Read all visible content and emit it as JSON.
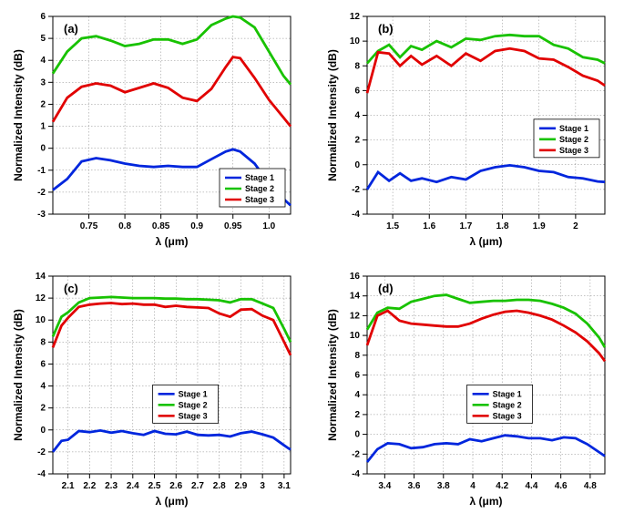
{
  "colors": {
    "stage1": "#0026dd",
    "stage2": "#18c200",
    "stage3": "#e10000",
    "grid": "#888888",
    "background": "#ffffff"
  },
  "legend_labels": [
    "Stage 1",
    "Stage 2",
    "Stage 3"
  ],
  "xlabel": "λ (μm)",
  "ylabel": "Normalized Intensity (dB)",
  "line_width": 2.8,
  "panels": {
    "a": {
      "letter": "(a)",
      "xlim": [
        0.7,
        1.03
      ],
      "ylim": [
        -3,
        6
      ],
      "xticks": [
        0.75,
        0.85,
        0.95
      ],
      "xticks_minor": [
        0.8,
        0.9,
        1.0
      ],
      "yticks": [
        -3,
        -2,
        -1,
        0,
        1,
        2,
        3,
        4,
        5,
        6
      ],
      "legend_pos": "bottom-right",
      "series": {
        "stage1": [
          [
            0.7,
            -1.9
          ],
          [
            0.72,
            -1.4
          ],
          [
            0.74,
            -0.6
          ],
          [
            0.76,
            -0.45
          ],
          [
            0.78,
            -0.55
          ],
          [
            0.8,
            -0.7
          ],
          [
            0.82,
            -0.8
          ],
          [
            0.84,
            -0.85
          ],
          [
            0.86,
            -0.8
          ],
          [
            0.88,
            -0.85
          ],
          [
            0.9,
            -0.85
          ],
          [
            0.92,
            -0.5
          ],
          [
            0.94,
            -0.15
          ],
          [
            0.95,
            -0.05
          ],
          [
            0.96,
            -0.15
          ],
          [
            0.98,
            -0.7
          ],
          [
            1.0,
            -1.6
          ],
          [
            1.02,
            -2.3
          ],
          [
            1.03,
            -2.6
          ]
        ],
        "stage2": [
          [
            0.7,
            3.4
          ],
          [
            0.72,
            4.4
          ],
          [
            0.74,
            5.0
          ],
          [
            0.76,
            5.1
          ],
          [
            0.78,
            4.9
          ],
          [
            0.8,
            4.65
          ],
          [
            0.82,
            4.75
          ],
          [
            0.84,
            4.95
          ],
          [
            0.86,
            4.95
          ],
          [
            0.88,
            4.75
          ],
          [
            0.9,
            4.95
          ],
          [
            0.92,
            5.6
          ],
          [
            0.94,
            5.9
          ],
          [
            0.95,
            6.0
          ],
          [
            0.96,
            5.95
          ],
          [
            0.98,
            5.5
          ],
          [
            1.0,
            4.4
          ],
          [
            1.02,
            3.3
          ],
          [
            1.03,
            2.9
          ]
        ],
        "stage3": [
          [
            0.7,
            1.2
          ],
          [
            0.72,
            2.3
          ],
          [
            0.74,
            2.8
          ],
          [
            0.76,
            2.95
          ],
          [
            0.78,
            2.85
          ],
          [
            0.8,
            2.55
          ],
          [
            0.82,
            2.75
          ],
          [
            0.84,
            2.95
          ],
          [
            0.86,
            2.75
          ],
          [
            0.88,
            2.3
          ],
          [
            0.9,
            2.15
          ],
          [
            0.92,
            2.7
          ],
          [
            0.94,
            3.7
          ],
          [
            0.95,
            4.15
          ],
          [
            0.96,
            4.1
          ],
          [
            0.98,
            3.2
          ],
          [
            1.0,
            2.2
          ],
          [
            1.02,
            1.4
          ],
          [
            1.03,
            1.0
          ]
        ]
      }
    },
    "b": {
      "letter": "(b)",
      "xlim": [
        1.43,
        2.08
      ],
      "ylim": [
        -4,
        12
      ],
      "xticks": [
        1.5,
        1.6,
        1.7,
        1.8,
        1.9,
        2.0
      ],
      "xticks_minor": [],
      "yticks": [
        -4,
        -2,
        0,
        2,
        4,
        6,
        8,
        10,
        12
      ],
      "legend_pos": "middle-right",
      "series": {
        "stage1": [
          [
            1.43,
            -2.0
          ],
          [
            1.46,
            -0.6
          ],
          [
            1.49,
            -1.3
          ],
          [
            1.52,
            -0.7
          ],
          [
            1.55,
            -1.3
          ],
          [
            1.58,
            -1.1
          ],
          [
            1.62,
            -1.4
          ],
          [
            1.66,
            -1.0
          ],
          [
            1.7,
            -1.2
          ],
          [
            1.74,
            -0.5
          ],
          [
            1.78,
            -0.2
          ],
          [
            1.82,
            -0.05
          ],
          [
            1.86,
            -0.2
          ],
          [
            1.9,
            -0.5
          ],
          [
            1.94,
            -0.6
          ],
          [
            1.98,
            -1.0
          ],
          [
            2.02,
            -1.1
          ],
          [
            2.06,
            -1.35
          ],
          [
            2.08,
            -1.4
          ]
        ],
        "stage2": [
          [
            1.43,
            8.2
          ],
          [
            1.46,
            9.2
          ],
          [
            1.49,
            9.7
          ],
          [
            1.52,
            8.7
          ],
          [
            1.55,
            9.6
          ],
          [
            1.58,
            9.3
          ],
          [
            1.62,
            10.0
          ],
          [
            1.66,
            9.5
          ],
          [
            1.7,
            10.2
          ],
          [
            1.74,
            10.1
          ],
          [
            1.78,
            10.4
          ],
          [
            1.82,
            10.5
          ],
          [
            1.86,
            10.4
          ],
          [
            1.9,
            10.4
          ],
          [
            1.94,
            9.7
          ],
          [
            1.98,
            9.4
          ],
          [
            2.02,
            8.7
          ],
          [
            2.06,
            8.5
          ],
          [
            2.08,
            8.2
          ]
        ],
        "stage3": [
          [
            1.43,
            5.8
          ],
          [
            1.46,
            9.1
          ],
          [
            1.49,
            9.0
          ],
          [
            1.52,
            8.0
          ],
          [
            1.55,
            8.8
          ],
          [
            1.58,
            8.1
          ],
          [
            1.62,
            8.8
          ],
          [
            1.66,
            8.0
          ],
          [
            1.7,
            9.0
          ],
          [
            1.74,
            8.4
          ],
          [
            1.78,
            9.2
          ],
          [
            1.82,
            9.4
          ],
          [
            1.86,
            9.2
          ],
          [
            1.9,
            8.6
          ],
          [
            1.94,
            8.5
          ],
          [
            1.98,
            7.9
          ],
          [
            2.02,
            7.2
          ],
          [
            2.06,
            6.8
          ],
          [
            2.08,
            6.4
          ]
        ]
      }
    },
    "c": {
      "letter": "(c)",
      "xlim": [
        2.03,
        3.13
      ],
      "ylim": [
        -4,
        14
      ],
      "xticks": [
        2.1,
        2.2,
        2.3,
        2.4,
        2.5,
        2.6,
        2.7,
        2.8,
        2.9,
        3.0,
        3.1
      ],
      "xticks_minor": [],
      "yticks": [
        -4,
        -2,
        0,
        2,
        4,
        6,
        8,
        10,
        12,
        14
      ],
      "legend_pos": "middle",
      "series": {
        "stage1": [
          [
            2.03,
            -2.0
          ],
          [
            2.07,
            -1.0
          ],
          [
            2.1,
            -0.9
          ],
          [
            2.15,
            -0.1
          ],
          [
            2.2,
            -0.2
          ],
          [
            2.25,
            -0.05
          ],
          [
            2.3,
            -0.25
          ],
          [
            2.35,
            -0.1
          ],
          [
            2.4,
            -0.3
          ],
          [
            2.45,
            -0.45
          ],
          [
            2.5,
            -0.1
          ],
          [
            2.55,
            -0.35
          ],
          [
            2.6,
            -0.4
          ],
          [
            2.65,
            -0.15
          ],
          [
            2.7,
            -0.45
          ],
          [
            2.75,
            -0.5
          ],
          [
            2.8,
            -0.45
          ],
          [
            2.85,
            -0.6
          ],
          [
            2.9,
            -0.3
          ],
          [
            2.95,
            -0.15
          ],
          [
            3.0,
            -0.4
          ],
          [
            3.05,
            -0.7
          ],
          [
            3.1,
            -1.4
          ],
          [
            3.13,
            -1.8
          ]
        ],
        "stage2": [
          [
            2.03,
            8.5
          ],
          [
            2.07,
            10.3
          ],
          [
            2.1,
            10.7
          ],
          [
            2.15,
            11.6
          ],
          [
            2.2,
            12.0
          ],
          [
            2.25,
            12.05
          ],
          [
            2.3,
            12.1
          ],
          [
            2.35,
            12.05
          ],
          [
            2.4,
            12.0
          ],
          [
            2.45,
            12.0
          ],
          [
            2.5,
            12.0
          ],
          [
            2.55,
            11.95
          ],
          [
            2.6,
            11.95
          ],
          [
            2.65,
            11.9
          ],
          [
            2.7,
            11.9
          ],
          [
            2.75,
            11.85
          ],
          [
            2.8,
            11.8
          ],
          [
            2.85,
            11.6
          ],
          [
            2.9,
            11.9
          ],
          [
            2.95,
            11.9
          ],
          [
            3.0,
            11.5
          ],
          [
            3.05,
            11.1
          ],
          [
            3.1,
            9.2
          ],
          [
            3.13,
            8.0
          ]
        ],
        "stage3": [
          [
            2.03,
            7.5
          ],
          [
            2.07,
            9.5
          ],
          [
            2.1,
            10.2
          ],
          [
            2.15,
            11.2
          ],
          [
            2.2,
            11.4
          ],
          [
            2.25,
            11.5
          ],
          [
            2.3,
            11.55
          ],
          [
            2.35,
            11.45
          ],
          [
            2.4,
            11.5
          ],
          [
            2.45,
            11.4
          ],
          [
            2.5,
            11.4
          ],
          [
            2.55,
            11.2
          ],
          [
            2.6,
            11.3
          ],
          [
            2.65,
            11.2
          ],
          [
            2.7,
            11.15
          ],
          [
            2.75,
            11.1
          ],
          [
            2.8,
            10.6
          ],
          [
            2.85,
            10.3
          ],
          [
            2.9,
            10.95
          ],
          [
            2.95,
            11.0
          ],
          [
            3.0,
            10.4
          ],
          [
            3.05,
            10.0
          ],
          [
            3.1,
            8.0
          ],
          [
            3.13,
            6.8
          ]
        ]
      }
    },
    "d": {
      "letter": "(d)",
      "xlim": [
        3.28,
        4.9
      ],
      "ylim": [
        -4,
        16
      ],
      "xticks": [
        3.4,
        3.6,
        3.8,
        4.0,
        4.2,
        4.4,
        4.6,
        4.8
      ],
      "xticks_minor": [],
      "yticks": [
        -4,
        -2,
        0,
        2,
        4,
        6,
        8,
        10,
        12,
        14,
        16
      ],
      "legend_pos": "middle",
      "series": {
        "stage1": [
          [
            3.28,
            -2.8
          ],
          [
            3.35,
            -1.5
          ],
          [
            3.42,
            -0.9
          ],
          [
            3.5,
            -1.0
          ],
          [
            3.58,
            -1.4
          ],
          [
            3.66,
            -1.3
          ],
          [
            3.74,
            -1.0
          ],
          [
            3.82,
            -0.9
          ],
          [
            3.9,
            -1.0
          ],
          [
            3.98,
            -0.5
          ],
          [
            4.06,
            -0.7
          ],
          [
            4.14,
            -0.4
          ],
          [
            4.22,
            -0.1
          ],
          [
            4.3,
            -0.2
          ],
          [
            4.38,
            -0.4
          ],
          [
            4.46,
            -0.4
          ],
          [
            4.54,
            -0.6
          ],
          [
            4.62,
            -0.3
          ],
          [
            4.7,
            -0.4
          ],
          [
            4.78,
            -1.0
          ],
          [
            4.86,
            -1.8
          ],
          [
            4.9,
            -2.2
          ]
        ],
        "stage2": [
          [
            3.28,
            10.6
          ],
          [
            3.35,
            12.3
          ],
          [
            3.42,
            12.8
          ],
          [
            3.5,
            12.7
          ],
          [
            3.58,
            13.4
          ],
          [
            3.66,
            13.7
          ],
          [
            3.74,
            14.0
          ],
          [
            3.82,
            14.1
          ],
          [
            3.9,
            13.7
          ],
          [
            3.98,
            13.3
          ],
          [
            4.06,
            13.4
          ],
          [
            4.14,
            13.5
          ],
          [
            4.22,
            13.5
          ],
          [
            4.3,
            13.6
          ],
          [
            4.38,
            13.6
          ],
          [
            4.46,
            13.5
          ],
          [
            4.54,
            13.2
          ],
          [
            4.62,
            12.8
          ],
          [
            4.7,
            12.2
          ],
          [
            4.78,
            11.2
          ],
          [
            4.86,
            9.8
          ],
          [
            4.9,
            8.8
          ]
        ],
        "stage3": [
          [
            3.28,
            9.0
          ],
          [
            3.35,
            12.0
          ],
          [
            3.42,
            12.5
          ],
          [
            3.5,
            11.5
          ],
          [
            3.58,
            11.2
          ],
          [
            3.66,
            11.1
          ],
          [
            3.74,
            11.0
          ],
          [
            3.82,
            10.9
          ],
          [
            3.9,
            10.9
          ],
          [
            3.98,
            11.2
          ],
          [
            4.06,
            11.7
          ],
          [
            4.14,
            12.1
          ],
          [
            4.22,
            12.4
          ],
          [
            4.3,
            12.5
          ],
          [
            4.38,
            12.3
          ],
          [
            4.46,
            12.0
          ],
          [
            4.54,
            11.6
          ],
          [
            4.62,
            11.0
          ],
          [
            4.7,
            10.3
          ],
          [
            4.78,
            9.4
          ],
          [
            4.86,
            8.2
          ],
          [
            4.9,
            7.4
          ]
        ]
      }
    }
  }
}
